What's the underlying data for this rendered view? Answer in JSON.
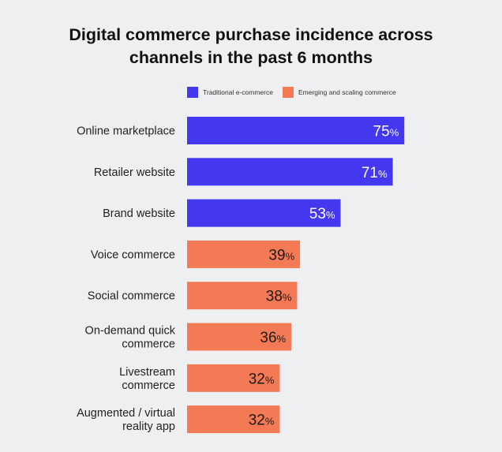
{
  "chart_data": {
    "type": "bar",
    "orientation": "horizontal",
    "title": "Digital commerce purchase incidence across channels in the past 6 months",
    "title_lines": [
      "Digital commerce purchase incidence across",
      "channels in the past 6 months"
    ],
    "xlabel": "",
    "ylabel": "",
    "xlim": [
      0,
      100
    ],
    "grid": false,
    "unit": "%",
    "legend_position": "top",
    "legend": [
      {
        "name": "Traditional e-commerce",
        "color": "#4338f0"
      },
      {
        "name": "Emerging and scaling commerce",
        "color": "#f47a55"
      }
    ],
    "categories": [
      [
        "Online marketplace"
      ],
      [
        "Retailer website"
      ],
      [
        "Brand website"
      ],
      [
        "Voice commerce"
      ],
      [
        "Social commerce"
      ],
      [
        "On-demand quick",
        "commerce"
      ],
      [
        "Livestream",
        "commerce"
      ],
      [
        "Augmented / virtual",
        "reality app"
      ]
    ],
    "values": [
      75,
      71,
      53,
      39,
      38,
      36,
      32,
      32
    ],
    "series_index": [
      0,
      0,
      0,
      1,
      1,
      1,
      1,
      1
    ],
    "label_colors": [
      "#ffffff",
      "#1a1a1a"
    ]
  }
}
